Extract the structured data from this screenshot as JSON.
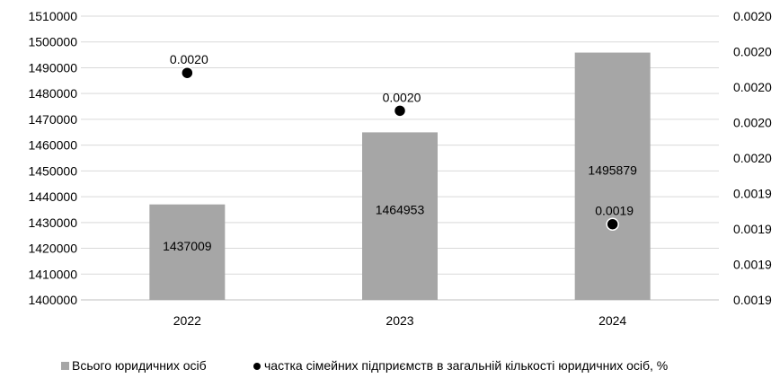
{
  "chart_data": {
    "type": "bar",
    "categories": [
      "2022",
      "2023",
      "2024"
    ],
    "series": [
      {
        "name": "Всього юридичних осіб",
        "kind": "bar",
        "axis": "left",
        "values": [
          1437009,
          1464953,
          1495879
        ],
        "labels": [
          "1437009",
          "1464953",
          "1495879"
        ],
        "color": "#a6a6a6"
      },
      {
        "name": "частка сімейних підприємств в загальній кількості юридичних осіб, %",
        "kind": "scatter",
        "axis": "right",
        "values": [
          0.00202,
          0.002,
          0.00194
        ],
        "labels": [
          "0.0020",
          "0.0020",
          "0.0019"
        ],
        "color": "#000000"
      }
    ],
    "y_left": {
      "lim": [
        1400000,
        1510000
      ],
      "ticks": [
        "1510000",
        "1500000",
        "1490000",
        "1480000",
        "1470000",
        "1460000",
        "1450000",
        "1440000",
        "1430000",
        "1420000",
        "1410000",
        "1400000"
      ]
    },
    "y_right": {
      "lim": [
        0.0019,
        0.00205
      ],
      "ticks": [
        "0.0020",
        "0.0020",
        "0.0020",
        "0.0020",
        "0.0020",
        "0.0019",
        "0.0019",
        "0.0019",
        "0.0019"
      ]
    },
    "grid": true,
    "legend": "bottom"
  }
}
